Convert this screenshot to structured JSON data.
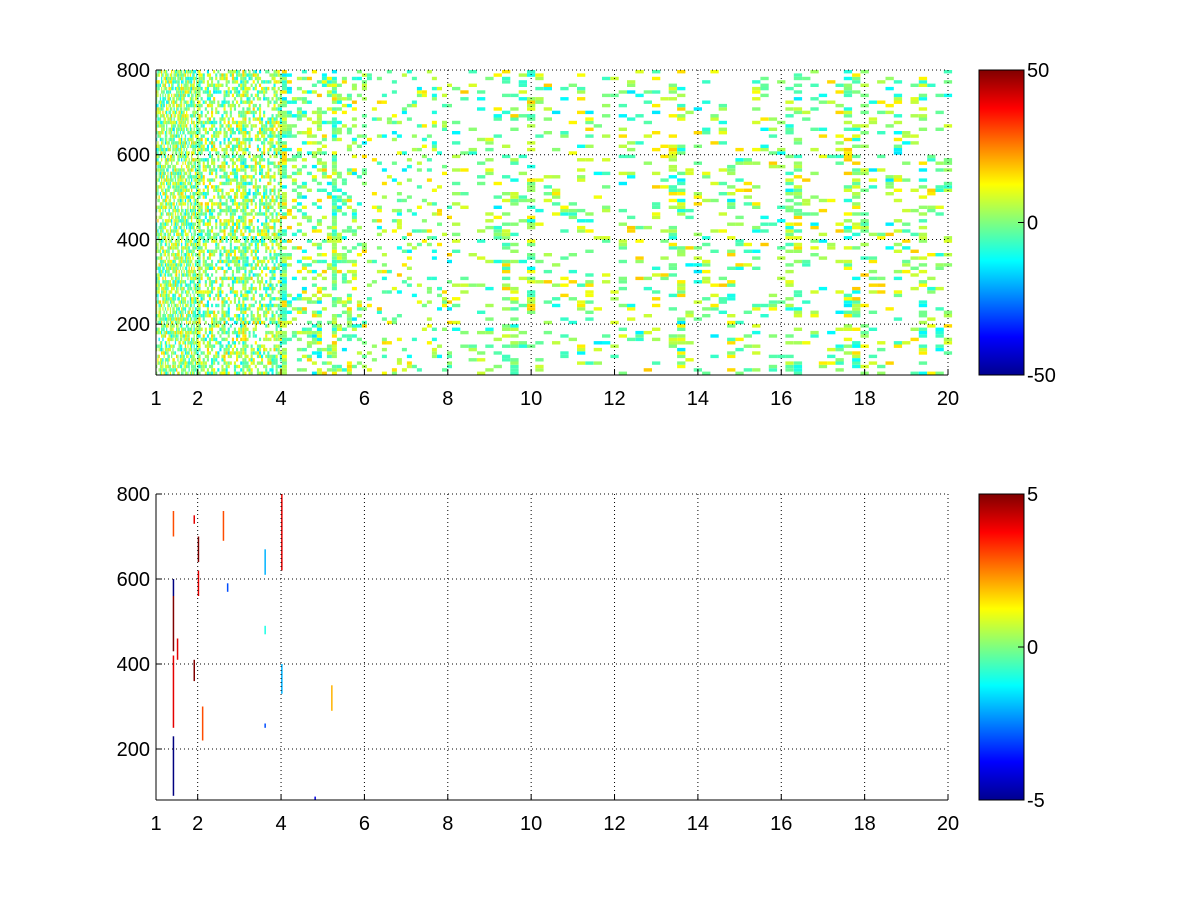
{
  "colormap": "jet",
  "colormap_stops": [
    "#00008f",
    "#0000ff",
    "#00ffff",
    "#ffff00",
    "#ff0000",
    "#800000"
  ],
  "background_color": "#ffffff",
  "grid_style": "dotted",
  "chart_data": [
    {
      "type": "heatmap",
      "title": "",
      "xlabel": "",
      "ylabel": "",
      "xlim": [
        1,
        20
      ],
      "ylim": [
        80,
        800
      ],
      "grid": true,
      "x_ticks": [
        1,
        2,
        4,
        6,
        8,
        10,
        12,
        14,
        16,
        18,
        20
      ],
      "x_tick_labels": [
        "1",
        "2",
        "4",
        "6",
        "8",
        "10",
        "12",
        "14",
        "16",
        "18",
        "20"
      ],
      "y_ticks": [
        200,
        400,
        600,
        800
      ],
      "y_tick_labels": [
        "200",
        "400",
        "600",
        "800"
      ],
      "colorbar": {
        "min": -50,
        "max": 50,
        "ticks": [
          -50,
          0,
          50
        ],
        "tick_labels": [
          "-50",
          "0",
          "50"
        ]
      },
      "cell_height": 8,
      "density_by_x": [
        [
          1,
          2,
          0.7
        ],
        [
          2,
          4,
          0.55
        ],
        [
          4,
          6,
          0.3
        ],
        [
          6,
          20,
          0.16
        ]
      ],
      "value_spread": 12,
      "column_widths": [
        [
          1,
          2,
          0.03
        ],
        [
          2,
          4,
          0.05
        ],
        [
          4,
          8,
          0.12
        ],
        [
          8,
          20,
          0.2
        ]
      ],
      "highlight_columns": [
        1.6,
        2.0,
        3.1,
        4.0,
        5.2,
        9.4,
        9.9,
        13.4,
        16.2,
        17.6,
        19.3
      ]
    },
    {
      "type": "heatmap",
      "title": "",
      "xlabel": "",
      "ylabel": "",
      "xlim": [
        1,
        20
      ],
      "ylim": [
        80,
        800
      ],
      "grid": true,
      "x_ticks": [
        1,
        2,
        4,
        6,
        8,
        10,
        12,
        14,
        16,
        18,
        20
      ],
      "x_tick_labels": [
        "1",
        "2",
        "4",
        "6",
        "8",
        "10",
        "12",
        "14",
        "16",
        "18",
        "20"
      ],
      "y_ticks": [
        200,
        400,
        600,
        800
      ],
      "y_tick_labels": [
        "200",
        "400",
        "600",
        "800"
      ],
      "colorbar": {
        "min": -5,
        "max": 5,
        "ticks": [
          -5,
          0,
          5
        ],
        "tick_labels": [
          "-5",
          "0",
          "5"
        ]
      },
      "streaks": [
        {
          "x": 1.4,
          "y0": 90,
          "y1": 230,
          "v": -5
        },
        {
          "x": 1.4,
          "y0": 250,
          "y1": 420,
          "v": 4
        },
        {
          "x": 1.4,
          "y0": 430,
          "y1": 560,
          "v": 5
        },
        {
          "x": 1.4,
          "y0": 560,
          "y1": 600,
          "v": -5
        },
        {
          "x": 1.4,
          "y0": 700,
          "y1": 760,
          "v": 3
        },
        {
          "x": 1.5,
          "y0": 410,
          "y1": 460,
          "v": 4
        },
        {
          "x": 1.9,
          "y0": 360,
          "y1": 410,
          "v": 5
        },
        {
          "x": 1.9,
          "y0": 730,
          "y1": 750,
          "v": 4
        },
        {
          "x": 2.0,
          "y0": 560,
          "y1": 620,
          "v": 4
        },
        {
          "x": 2.0,
          "y0": 640,
          "y1": 700,
          "v": 5
        },
        {
          "x": 2.1,
          "y0": 220,
          "y1": 300,
          "v": 3
        },
        {
          "x": 2.6,
          "y0": 690,
          "y1": 760,
          "v": 3
        },
        {
          "x": 2.7,
          "y0": 570,
          "y1": 590,
          "v": -3
        },
        {
          "x": 3.6,
          "y0": 610,
          "y1": 670,
          "v": -2
        },
        {
          "x": 3.6,
          "y0": 470,
          "y1": 490,
          "v": -1
        },
        {
          "x": 3.6,
          "y0": 250,
          "y1": 260,
          "v": -3
        },
        {
          "x": 4.0,
          "y0": 620,
          "y1": 800,
          "v": 4
        },
        {
          "x": 4.0,
          "y0": 330,
          "y1": 400,
          "v": -2
        },
        {
          "x": 5.2,
          "y0": 290,
          "y1": 350,
          "v": 2
        },
        {
          "x": 4.8,
          "y0": 80,
          "y1": 88,
          "v": -4
        }
      ]
    }
  ]
}
